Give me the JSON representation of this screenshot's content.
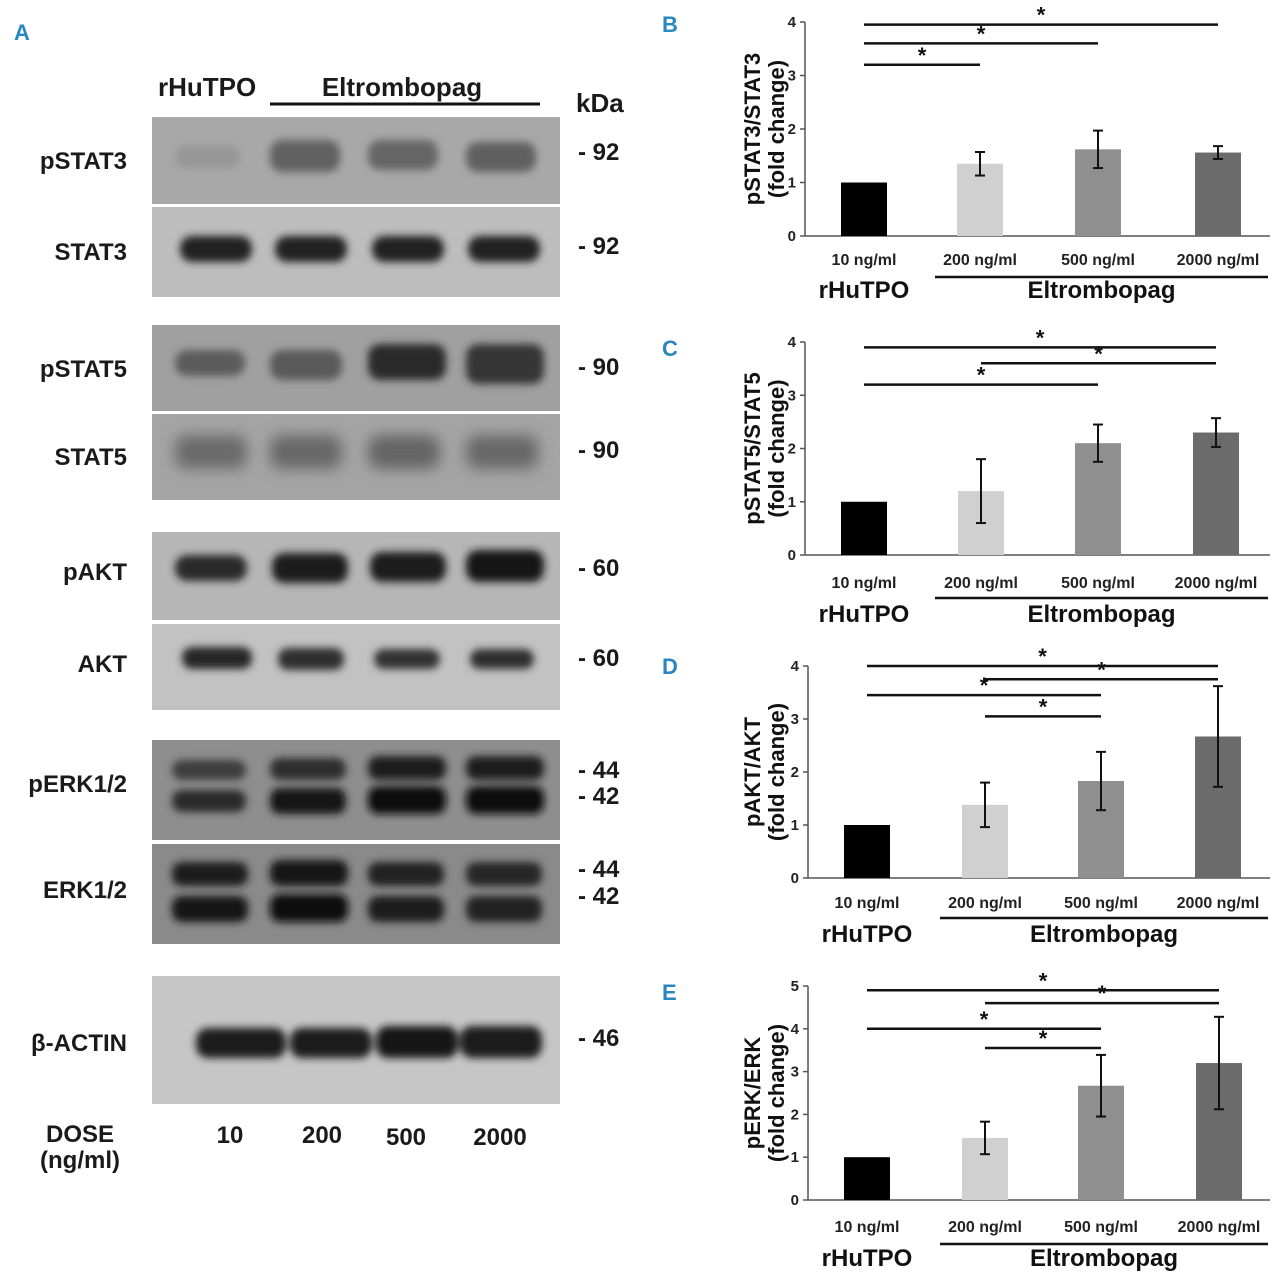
{
  "panel_letters": [
    "A",
    "B",
    "C",
    "D",
    "E"
  ],
  "blot": {
    "header_left": "rHuTPO",
    "header_right": "Eltrombopag",
    "kda_header": "kDa",
    "rows": [
      {
        "label": "pSTAT3",
        "kda": [
          "- 92"
        ]
      },
      {
        "label": "STAT3",
        "kda": [
          "- 92"
        ]
      },
      {
        "label": "pSTAT5",
        "kda": [
          "- 90"
        ]
      },
      {
        "label": "STAT5",
        "kda": [
          "- 90"
        ]
      },
      {
        "label": "pAKT",
        "kda": [
          "- 60"
        ]
      },
      {
        "label": "AKT",
        "kda": [
          "- 60"
        ]
      },
      {
        "label": "pERK1/2",
        "kda": [
          "- 44",
          "- 42"
        ]
      },
      {
        "label": "ERK1/2",
        "kda": [
          "- 44",
          "- 42"
        ]
      },
      {
        "label": "β-ACTIN",
        "kda": [
          "- 46"
        ]
      }
    ],
    "dose_label_1": "DOSE",
    "dose_label_2": "(ng/ml)",
    "doses": [
      "10",
      "200",
      "500",
      "2000"
    ]
  },
  "colors": {
    "bars": [
      "#000000",
      "#d0d0d0",
      "#8f8f8f",
      "#6b6b6b"
    ],
    "panel_letter": "#2a86c1"
  },
  "chart_data": [
    {
      "type": "bar",
      "panel": "B",
      "categories": [
        "10 ng/ml",
        "200 ng/ml",
        "500 ng/ml",
        "2000 ng/ml"
      ],
      "values": [
        1.0,
        1.35,
        1.62,
        1.56
      ],
      "errors": [
        0,
        0.22,
        0.35,
        0.12
      ],
      "ylabel": [
        "pSTAT3/STAT3",
        "(fold change)"
      ],
      "ylim": [
        0,
        4
      ],
      "yticks": [
        0,
        1,
        2,
        3,
        4
      ],
      "group_left": "rHuTPO",
      "group_right": "Eltrombopag",
      "significance": [
        {
          "from": 0,
          "to": 3,
          "level": 3.95,
          "label": "*"
        },
        {
          "from": 0,
          "to": 2,
          "level": 3.6,
          "label": "*"
        },
        {
          "from": 0,
          "to": 1,
          "level": 3.2,
          "label": "*"
        }
      ]
    },
    {
      "type": "bar",
      "panel": "C",
      "categories": [
        "10 ng/ml",
        "200 ng/ml",
        "500 ng/ml",
        "2000 ng/ml"
      ],
      "values": [
        1.0,
        1.2,
        2.1,
        2.3
      ],
      "errors": [
        0,
        0.6,
        0.35,
        0.27
      ],
      "ylabel": [
        "pSTAT5/STAT5",
        "(fold change)"
      ],
      "ylim": [
        0,
        4
      ],
      "yticks": [
        0,
        1,
        2,
        3,
        4
      ],
      "group_left": "rHuTPO",
      "group_right": "Eltrombopag",
      "significance": [
        {
          "from": 0,
          "to": 3,
          "level": 3.9,
          "label": "*"
        },
        {
          "from": 1,
          "to": 3,
          "level": 3.6,
          "label": "*"
        },
        {
          "from": 0,
          "to": 2,
          "level": 3.2,
          "label": "*"
        }
      ]
    },
    {
      "type": "bar",
      "panel": "D",
      "categories": [
        "10 ng/ml",
        "200 ng/ml",
        "500 ng/ml",
        "2000 ng/ml"
      ],
      "values": [
        1.0,
        1.38,
        1.83,
        2.67
      ],
      "errors": [
        0,
        0.42,
        0.55,
        0.95
      ],
      "ylabel": [
        "pAKT/AKT",
        "(fold change)"
      ],
      "ylim": [
        0,
        4
      ],
      "yticks": [
        0,
        1,
        2,
        3,
        4
      ],
      "group_left": "rHuTPO",
      "group_right": "Eltrombopag",
      "significance": [
        {
          "from": 0,
          "to": 3,
          "level": 4.0,
          "label": "*"
        },
        {
          "from": 1,
          "to": 3,
          "level": 3.75,
          "label": "*"
        },
        {
          "from": 0,
          "to": 2,
          "level": 3.45,
          "label": "*"
        },
        {
          "from": 1,
          "to": 2,
          "level": 3.05,
          "label": "*"
        }
      ]
    },
    {
      "type": "bar",
      "panel": "E",
      "categories": [
        "10 ng/ml",
        "200 ng/ml",
        "500 ng/ml",
        "2000 ng/ml"
      ],
      "values": [
        1.0,
        1.45,
        2.67,
        3.2
      ],
      "errors": [
        0,
        0.38,
        0.72,
        1.08
      ],
      "ylabel": [
        "pERK/ERK",
        "(fold change)"
      ],
      "ylim": [
        0,
        5
      ],
      "yticks": [
        0,
        1,
        2,
        3,
        4,
        5
      ],
      "group_left": "rHuTPO",
      "group_right": "Eltrombopag",
      "significance": [
        {
          "from": 0,
          "to": 3,
          "level": 4.9,
          "label": "*"
        },
        {
          "from": 1,
          "to": 3,
          "level": 4.6,
          "label": "*"
        },
        {
          "from": 0,
          "to": 2,
          "level": 4.0,
          "label": "*"
        },
        {
          "from": 1,
          "to": 2,
          "level": 3.55,
          "label": "*"
        }
      ]
    }
  ]
}
